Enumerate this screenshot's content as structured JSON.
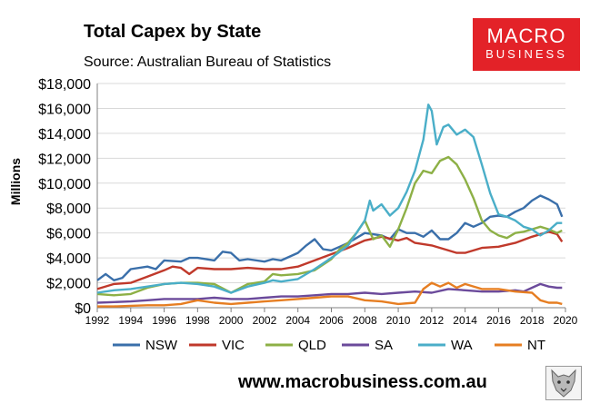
{
  "header": {
    "title": "Total Capex by State",
    "source": "Source: Australian Bureau of Statistics"
  },
  "logo": {
    "line1": "MACRO",
    "line2": "BUSINESS",
    "color": "#e32228",
    "icon": "wolf-icon"
  },
  "footer": {
    "website": "www.macrobusiness.com.au"
  },
  "chart_data": {
    "type": "line",
    "title": "Total Capex by State",
    "subtitle": "Source: Australian Bureau of Statistics",
    "ylabel": "Millions",
    "xlabel": "",
    "xlim": [
      1992,
      2020
    ],
    "ylim": [
      0,
      18000
    ],
    "x_ticks": [
      1992,
      1994,
      1996,
      1998,
      2000,
      2002,
      2004,
      2006,
      2008,
      2010,
      2012,
      2014,
      2016,
      2018,
      2020
    ],
    "y_ticks": [
      0,
      2000,
      4000,
      6000,
      8000,
      10000,
      12000,
      14000,
      16000,
      18000
    ],
    "y_tick_labels": [
      "$0",
      "$2,000",
      "$4,000",
      "$6,000",
      "$8,000",
      "$10,000",
      "$12,000",
      "$14,000",
      "$16,000",
      "$18,000"
    ],
    "grid": "horizontal",
    "legend_position": "bottom",
    "series": [
      {
        "name": "NSW",
        "color": "#3a6faa",
        "points": [
          [
            1992,
            2200
          ],
          [
            1992.5,
            2700
          ],
          [
            1993,
            2200
          ],
          [
            1993.5,
            2400
          ],
          [
            1994,
            3100
          ],
          [
            1995,
            3300
          ],
          [
            1995.5,
            3100
          ],
          [
            1996,
            3800
          ],
          [
            1997,
            3700
          ],
          [
            1997.5,
            4000
          ],
          [
            1998,
            4000
          ],
          [
            1999,
            3800
          ],
          [
            1999.5,
            4500
          ],
          [
            2000,
            4400
          ],
          [
            2000.5,
            3800
          ],
          [
            2001,
            3900
          ],
          [
            2002,
            3700
          ],
          [
            2002.5,
            3900
          ],
          [
            2003,
            3800
          ],
          [
            2004,
            4400
          ],
          [
            2004.5,
            5000
          ],
          [
            2005,
            5500
          ],
          [
            2005.5,
            4700
          ],
          [
            2006,
            4600
          ],
          [
            2006.5,
            4900
          ],
          [
            2007,
            5200
          ],
          [
            2007.5,
            5600
          ],
          [
            2008,
            6000
          ],
          [
            2009,
            5800
          ],
          [
            2009.5,
            5500
          ],
          [
            2010,
            6300
          ],
          [
            2010.5,
            6000
          ],
          [
            2011,
            6000
          ],
          [
            2011.5,
            5700
          ],
          [
            2012,
            6200
          ],
          [
            2012.5,
            5500
          ],
          [
            2013,
            5500
          ],
          [
            2013.5,
            6000
          ],
          [
            2014,
            6800
          ],
          [
            2014.5,
            6500
          ],
          [
            2015,
            6800
          ],
          [
            2015.5,
            7300
          ],
          [
            2016,
            7400
          ],
          [
            2016.5,
            7300
          ],
          [
            2017,
            7700
          ],
          [
            2017.5,
            8000
          ],
          [
            2018,
            8600
          ],
          [
            2018.5,
            9000
          ],
          [
            2019,
            8700
          ],
          [
            2019.5,
            8300
          ],
          [
            2019.8,
            7300
          ]
        ]
      },
      {
        "name": "VIC",
        "color": "#c0392b",
        "points": [
          [
            1992,
            1500
          ],
          [
            1993,
            1900
          ],
          [
            1994,
            2000
          ],
          [
            1995,
            2500
          ],
          [
            1996,
            3000
          ],
          [
            1996.5,
            3300
          ],
          [
            1997,
            3200
          ],
          [
            1997.5,
            2700
          ],
          [
            1998,
            3200
          ],
          [
            1999,
            3100
          ],
          [
            2000,
            3100
          ],
          [
            2001,
            3200
          ],
          [
            2002,
            3100
          ],
          [
            2003,
            3100
          ],
          [
            2004,
            3300
          ],
          [
            2005,
            3800
          ],
          [
            2006,
            4300
          ],
          [
            2007,
            4800
          ],
          [
            2008,
            5400
          ],
          [
            2009,
            5700
          ],
          [
            2010,
            5400
          ],
          [
            2010.5,
            5600
          ],
          [
            2011,
            5200
          ],
          [
            2012,
            5000
          ],
          [
            2013,
            4600
          ],
          [
            2013.5,
            4400
          ],
          [
            2014,
            4400
          ],
          [
            2015,
            4800
          ],
          [
            2016,
            4900
          ],
          [
            2017,
            5200
          ],
          [
            2018,
            5700
          ],
          [
            2019,
            6100
          ],
          [
            2019.5,
            5900
          ],
          [
            2019.8,
            5300
          ]
        ]
      },
      {
        "name": "QLD",
        "color": "#8db046",
        "points": [
          [
            1992,
            1100
          ],
          [
            1993,
            1000
          ],
          [
            1994,
            1100
          ],
          [
            1995,
            1600
          ],
          [
            1996,
            1900
          ],
          [
            1997,
            2000
          ],
          [
            1998,
            2000
          ],
          [
            1999,
            1900
          ],
          [
            2000,
            1200
          ],
          [
            2001,
            1900
          ],
          [
            2002,
            2100
          ],
          [
            2002.5,
            2700
          ],
          [
            2003,
            2600
          ],
          [
            2004,
            2700
          ],
          [
            2005,
            3000
          ],
          [
            2006,
            3900
          ],
          [
            2006.5,
            4700
          ],
          [
            2007,
            5200
          ],
          [
            2007.5,
            6000
          ],
          [
            2008,
            7000
          ],
          [
            2008.5,
            5500
          ],
          [
            2009,
            5800
          ],
          [
            2009.5,
            4900
          ],
          [
            2010,
            6300
          ],
          [
            2010.5,
            8000
          ],
          [
            2011,
            10000
          ],
          [
            2011.5,
            11000
          ],
          [
            2012,
            10800
          ],
          [
            2012.5,
            11800
          ],
          [
            2013,
            12100
          ],
          [
            2013.5,
            11500
          ],
          [
            2014,
            10300
          ],
          [
            2014.5,
            8800
          ],
          [
            2015,
            7000
          ],
          [
            2015.5,
            6200
          ],
          [
            2016,
            5800
          ],
          [
            2016.5,
            5600
          ],
          [
            2017,
            6000
          ],
          [
            2017.5,
            6100
          ],
          [
            2018,
            6300
          ],
          [
            2018.5,
            6500
          ],
          [
            2019,
            6300
          ],
          [
            2019.5,
            6000
          ],
          [
            2019.8,
            6200
          ]
        ]
      },
      {
        "name": "SA",
        "color": "#6b4a9b",
        "points": [
          [
            1992,
            400
          ],
          [
            1993,
            450
          ],
          [
            1994,
            500
          ],
          [
            1995,
            600
          ],
          [
            1996,
            700
          ],
          [
            1997,
            700
          ],
          [
            1998,
            700
          ],
          [
            1999,
            800
          ],
          [
            2000,
            700
          ],
          [
            2001,
            700
          ],
          [
            2002,
            800
          ],
          [
            2003,
            900
          ],
          [
            2004,
            900
          ],
          [
            2005,
            1000
          ],
          [
            2006,
            1100
          ],
          [
            2007,
            1100
          ],
          [
            2008,
            1200
          ],
          [
            2009,
            1100
          ],
          [
            2010,
            1200
          ],
          [
            2011,
            1300
          ],
          [
            2012,
            1200
          ],
          [
            2013,
            1500
          ],
          [
            2014,
            1400
          ],
          [
            2015,
            1300
          ],
          [
            2016,
            1300
          ],
          [
            2017,
            1400
          ],
          [
            2017.5,
            1300
          ],
          [
            2018,
            1600
          ],
          [
            2018.5,
            1900
          ],
          [
            2019,
            1700
          ],
          [
            2019.5,
            1600
          ],
          [
            2019.8,
            1600
          ]
        ]
      },
      {
        "name": "WA",
        "color": "#4aaec8",
        "points": [
          [
            1992,
            1200
          ],
          [
            1993,
            1400
          ],
          [
            1994,
            1500
          ],
          [
            1995,
            1700
          ],
          [
            1996,
            1900
          ],
          [
            1997,
            2000
          ],
          [
            1998,
            1900
          ],
          [
            1999,
            1700
          ],
          [
            2000,
            1200
          ],
          [
            2001,
            1700
          ],
          [
            2002,
            2000
          ],
          [
            2002.5,
            2200
          ],
          [
            2003,
            2100
          ],
          [
            2004,
            2300
          ],
          [
            2005,
            3100
          ],
          [
            2006,
            4000
          ],
          [
            2007,
            5000
          ],
          [
            2007.5,
            6000
          ],
          [
            2008,
            7000
          ],
          [
            2008.3,
            8600
          ],
          [
            2008.5,
            7800
          ],
          [
            2009,
            8300
          ],
          [
            2009.5,
            7400
          ],
          [
            2010,
            8000
          ],
          [
            2010.5,
            9300
          ],
          [
            2011,
            11000
          ],
          [
            2011.5,
            13500
          ],
          [
            2011.8,
            16300
          ],
          [
            2012,
            15800
          ],
          [
            2012.3,
            13100
          ],
          [
            2012.7,
            14500
          ],
          [
            2013,
            14700
          ],
          [
            2013.5,
            13900
          ],
          [
            2014,
            14300
          ],
          [
            2014.5,
            13700
          ],
          [
            2015,
            11500
          ],
          [
            2015.5,
            9200
          ],
          [
            2016,
            7500
          ],
          [
            2016.5,
            7300
          ],
          [
            2017,
            7000
          ],
          [
            2017.5,
            6500
          ],
          [
            2018,
            6300
          ],
          [
            2018.5,
            5800
          ],
          [
            2019,
            6200
          ],
          [
            2019.5,
            6800
          ],
          [
            2019.8,
            6800
          ]
        ]
      },
      {
        "name": "NT",
        "color": "#e67e22",
        "points": [
          [
            1992,
            100
          ],
          [
            1993,
            100
          ],
          [
            1994,
            150
          ],
          [
            1995,
            200
          ],
          [
            1996,
            200
          ],
          [
            1997,
            300
          ],
          [
            1998,
            600
          ],
          [
            1999,
            400
          ],
          [
            2000,
            300
          ],
          [
            2001,
            400
          ],
          [
            2002,
            500
          ],
          [
            2003,
            600
          ],
          [
            2004,
            700
          ],
          [
            2005,
            800
          ],
          [
            2006,
            900
          ],
          [
            2007,
            900
          ],
          [
            2008,
            600
          ],
          [
            2009,
            500
          ],
          [
            2010,
            300
          ],
          [
            2011,
            400
          ],
          [
            2011.5,
            1500
          ],
          [
            2012,
            2000
          ],
          [
            2012.5,
            1700
          ],
          [
            2013,
            2000
          ],
          [
            2013.5,
            1600
          ],
          [
            2014,
            1900
          ],
          [
            2015,
            1500
          ],
          [
            2016,
            1500
          ],
          [
            2017,
            1300
          ],
          [
            2018,
            1200
          ],
          [
            2018.5,
            600
          ],
          [
            2019,
            400
          ],
          [
            2019.5,
            400
          ],
          [
            2019.8,
            300
          ]
        ]
      }
    ]
  }
}
